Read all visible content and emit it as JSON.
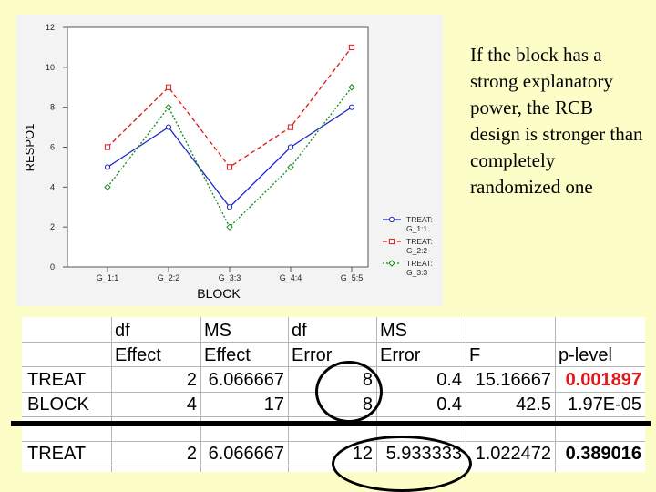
{
  "chart_data": {
    "type": "line",
    "categories": [
      "G_1:1",
      "G_2:2",
      "G_3:3",
      "G_4:4",
      "G_5:5"
    ],
    "series": [
      {
        "name": "TREAT: G_1:1",
        "values": [
          5,
          7,
          3,
          6,
          8
        ],
        "color": "#1e28c8",
        "dash": "solid",
        "marker": "circle"
      },
      {
        "name": "TREAT: G_2:2",
        "values": [
          6,
          9,
          5,
          7,
          11
        ],
        "color": "#e01818",
        "dash": "dashed",
        "marker": "square"
      },
      {
        "name": "TREAT: G_3:3",
        "values": [
          4,
          8,
          2,
          5,
          9
        ],
        "color": "#11881a",
        "dash": "dotted",
        "marker": "diamond"
      }
    ],
    "legend": [
      {
        "line1": "TREAT:",
        "line2": "G_1:1"
      },
      {
        "line1": "TREAT:",
        "line2": "G_2:2"
      },
      {
        "line1": "TREAT:",
        "line2": "G_3:3"
      }
    ],
    "xlabel": "BLOCK",
    "ylabel": "RESPO1",
    "ylim": [
      0,
      12
    ],
    "yticks": [
      "0",
      "2",
      "4",
      "6",
      "8",
      "10",
      "12"
    ],
    "grid": false,
    "legend_position": "right"
  },
  "explanation_text": "If the block has a strong explanatory power, the RCB design is stronger than completely randomized one",
  "table": {
    "headers_row1": [
      "",
      "df",
      "MS",
      "df",
      "MS",
      "",
      ""
    ],
    "headers_row2": [
      "",
      "Effect",
      "Effect",
      "Error",
      "Error",
      "F",
      "p-level"
    ],
    "rows": [
      {
        "name": "TREAT",
        "df_effect": "2",
        "ms_effect": "6.066667",
        "df_error": "8",
        "ms_error": "0.4",
        "f": "15.16667",
        "p": "0.001897"
      },
      {
        "name": "BLOCK",
        "df_effect": "4",
        "ms_effect": "17",
        "df_error": "8",
        "ms_error": "0.4",
        "f": "42.5",
        "p": "1.97E-05"
      },
      {
        "name": "TREAT",
        "df_effect": "2",
        "ms_effect": "6.066667",
        "df_error": "12",
        "ms_error": "5.933333",
        "f": "1.022472",
        "p": "0.389016"
      }
    ]
  }
}
